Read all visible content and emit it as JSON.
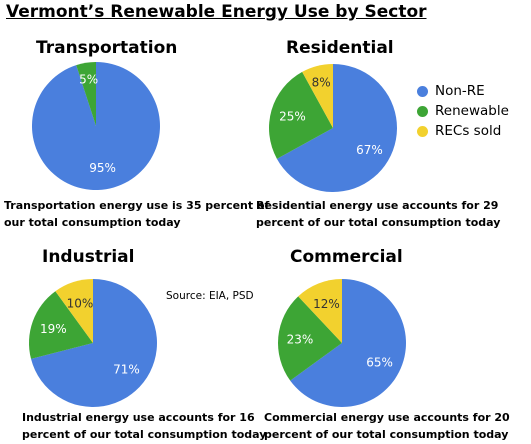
{
  "title": "Vermont’s Renewable Energy Use by Sector",
  "source": "Source: EIA, PSD",
  "colors": {
    "non_re": "#4a7fdd",
    "renewable": "#3da535",
    "recs": "#f2d12e"
  },
  "chart_data": [
    {
      "type": "pie",
      "title": "Transportation",
      "categories": [
        "Non-RE",
        "Renewable"
      ],
      "values": [
        95,
        5
      ],
      "labels": [
        "95%",
        "5%"
      ],
      "caption": [
        "Transportation energy use is 35 percent of",
        "our total consumption today"
      ]
    },
    {
      "type": "pie",
      "title": "Residential",
      "categories": [
        "Non-RE",
        "Renewable",
        "RECs sold"
      ],
      "values": [
        67,
        25,
        8
      ],
      "labels": [
        "67%",
        "25%",
        "8%"
      ],
      "caption": [
        "Residential energy use accounts for 29",
        "percent of our total consumption today"
      ]
    },
    {
      "type": "pie",
      "title": "Industrial",
      "categories": [
        "Non-RE",
        "Renewable",
        "RECs sold"
      ],
      "values": [
        71,
        19,
        10
      ],
      "labels": [
        "71%",
        "19%",
        "10%"
      ],
      "caption": [
        "Industrial energy use accounts for 16",
        "percent of our total consumption today"
      ]
    },
    {
      "type": "pie",
      "title": "Commercial",
      "categories": [
        "Non-RE",
        "Renewable",
        "RECs sold"
      ],
      "values": [
        65,
        23,
        12
      ],
      "labels": [
        "65%",
        "23%",
        "12%"
      ],
      "caption": [
        "Commercial energy use accounts for 20",
        "percent of our total consumption today"
      ]
    }
  ],
  "legend": {
    "placement": "right",
    "items": [
      "Non-RE",
      "Renewable",
      "RECs sold"
    ]
  }
}
